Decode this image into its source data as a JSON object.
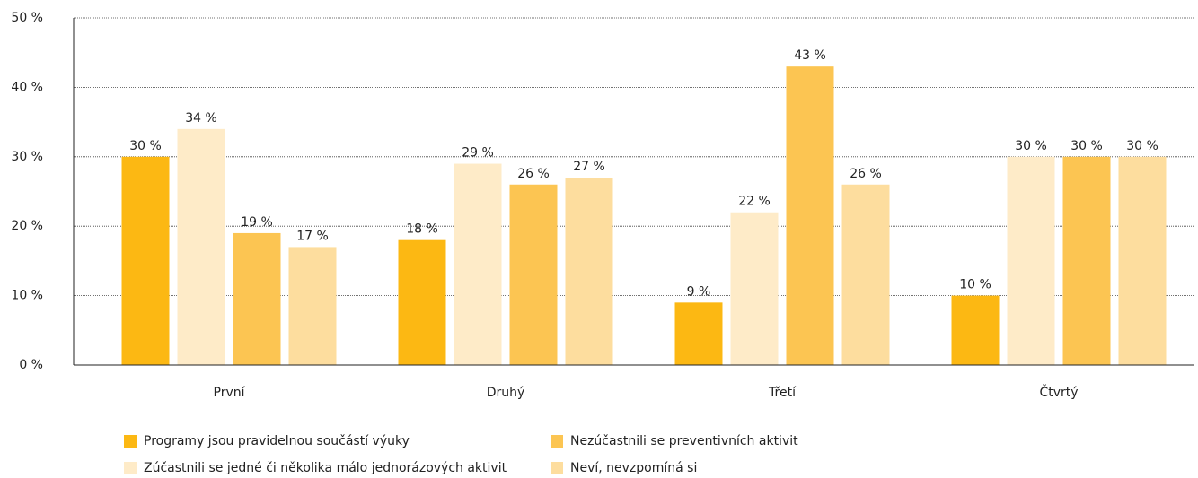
{
  "chart_data": {
    "type": "bar",
    "categories": [
      "První",
      "Druhý",
      "Třetí",
      "Čtvrtý"
    ],
    "series": [
      {
        "name": "Programy jsou pravidelnou součástí výuky",
        "color": "#fcb813",
        "values": [
          30,
          18,
          9,
          10
        ],
        "value_labels": [
          "30 %",
          "18 %",
          "9 %",
          "10 %"
        ]
      },
      {
        "name": "Zúčastnili se jedné či několika málo jednorázových aktivit",
        "color": "#feebc8",
        "values": [
          34,
          29,
          22,
          30
        ],
        "value_labels": [
          "34 %",
          "29 %",
          "22 %",
          "30 %"
        ]
      },
      {
        "name": "Nezúčastnili se preventivních aktivit",
        "color": "#fcc552",
        "values": [
          19,
          26,
          43,
          30
        ],
        "value_labels": [
          "19 %",
          "26 %",
          "43 %",
          "30 %"
        ]
      },
      {
        "name": "Neví, nevzpomíná si",
        "color": "#fddd9e",
        "values": [
          17,
          27,
          26,
          30
        ],
        "value_labels": [
          "17 %",
          "27 %",
          "26 %",
          "30 %"
        ]
      }
    ],
    "ylim": [
      0,
      50
    ],
    "yticks": [
      {
        "value": 0,
        "label": "0 %"
      },
      {
        "value": 10,
        "label": "10 %"
      },
      {
        "value": 20,
        "label": "20 %"
      },
      {
        "value": 30,
        "label": "30 %"
      },
      {
        "value": 40,
        "label": "40 %"
      },
      {
        "value": 50,
        "label": "50 %"
      }
    ],
    "grid": true
  }
}
